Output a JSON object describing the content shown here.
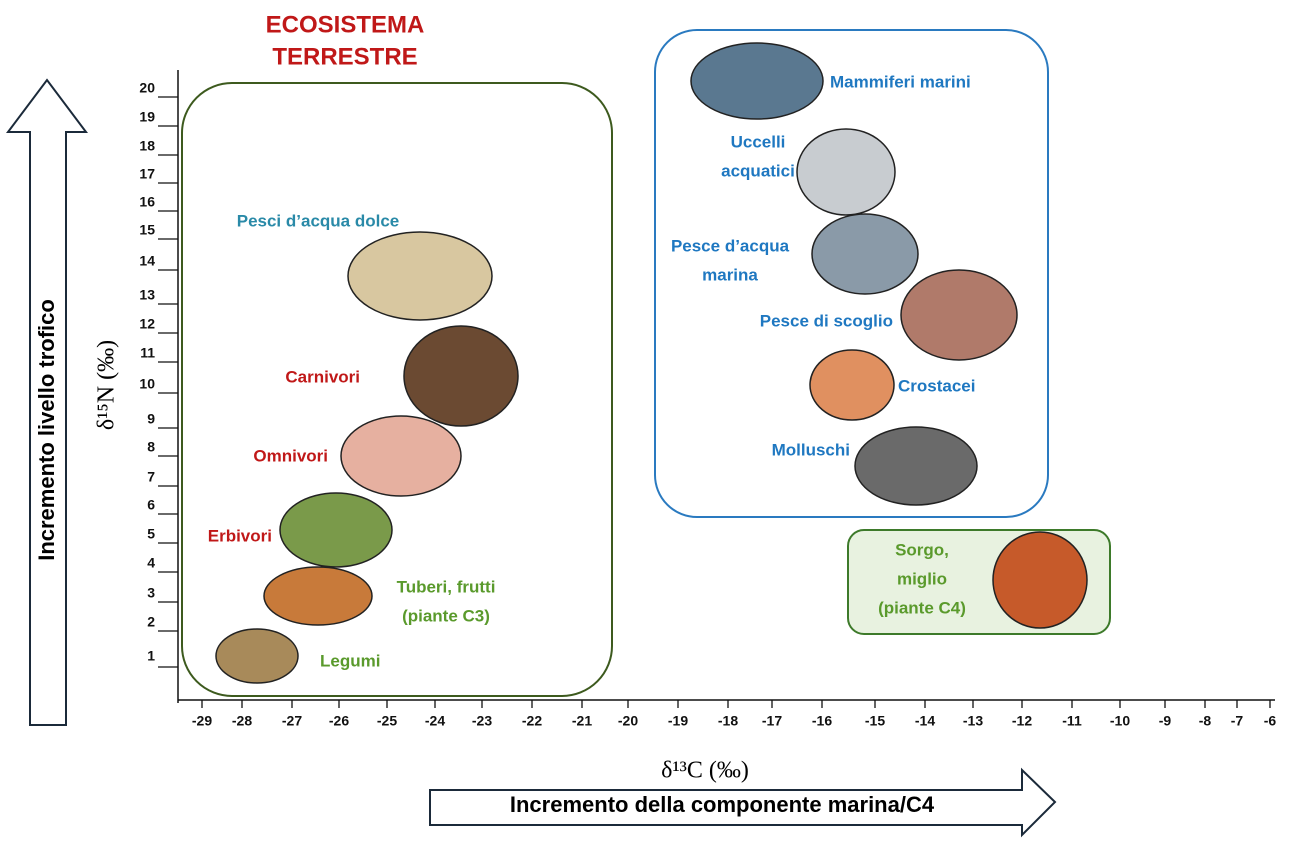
{
  "title": [
    "ECOSISTEMA",
    "TERRESTRE"
  ],
  "y_axis": {
    "label": "δ¹⁵N (‰)",
    "arrow": "Incremento livello trofico",
    "ticks": [
      "20",
      "19",
      "18",
      "17",
      "16",
      "15",
      "14",
      "13",
      "12",
      "11",
      "10",
      "9",
      "8",
      "7",
      "6",
      "5",
      "4",
      "3",
      "2",
      "1"
    ]
  },
  "x_axis": {
    "label": "δ¹³C (‰)",
    "arrow": "Incremento della componente marina/C4",
    "ticks": [
      "-29",
      "-28",
      "-27",
      "-26",
      "-25",
      "-24",
      "-23",
      "-22",
      "-21",
      "-20",
      "-19",
      "-18",
      "-17",
      "-16",
      "-15",
      "-14",
      "-13",
      "-12",
      "-11",
      "-10",
      "-9",
      "-8",
      "-7",
      "-6"
    ]
  },
  "terrestrial": [
    {
      "label": [
        "Pesci d’acqua dolce"
      ]
    },
    {
      "label": [
        "Carnivori"
      ]
    },
    {
      "label": [
        "Omnivori"
      ]
    },
    {
      "label": [
        "Erbivori"
      ]
    },
    {
      "label": [
        "Tuberi, frutti",
        "(piante C3)"
      ]
    },
    {
      "label": [
        "Legumi"
      ]
    }
  ],
  "marine": [
    {
      "label": [
        "Mammiferi marini"
      ]
    },
    {
      "label": [
        "Uccelli",
        "acquatici"
      ]
    },
    {
      "label": [
        "Pesce d’acqua",
        "marina"
      ]
    },
    {
      "label": [
        "Pesce di scoglio"
      ]
    },
    {
      "label": [
        "Crostacei"
      ]
    },
    {
      "label": [
        "Molluschi"
      ]
    }
  ],
  "c4": {
    "label": [
      "Sorgo,",
      "miglio",
      "(piante C4)"
    ]
  }
}
